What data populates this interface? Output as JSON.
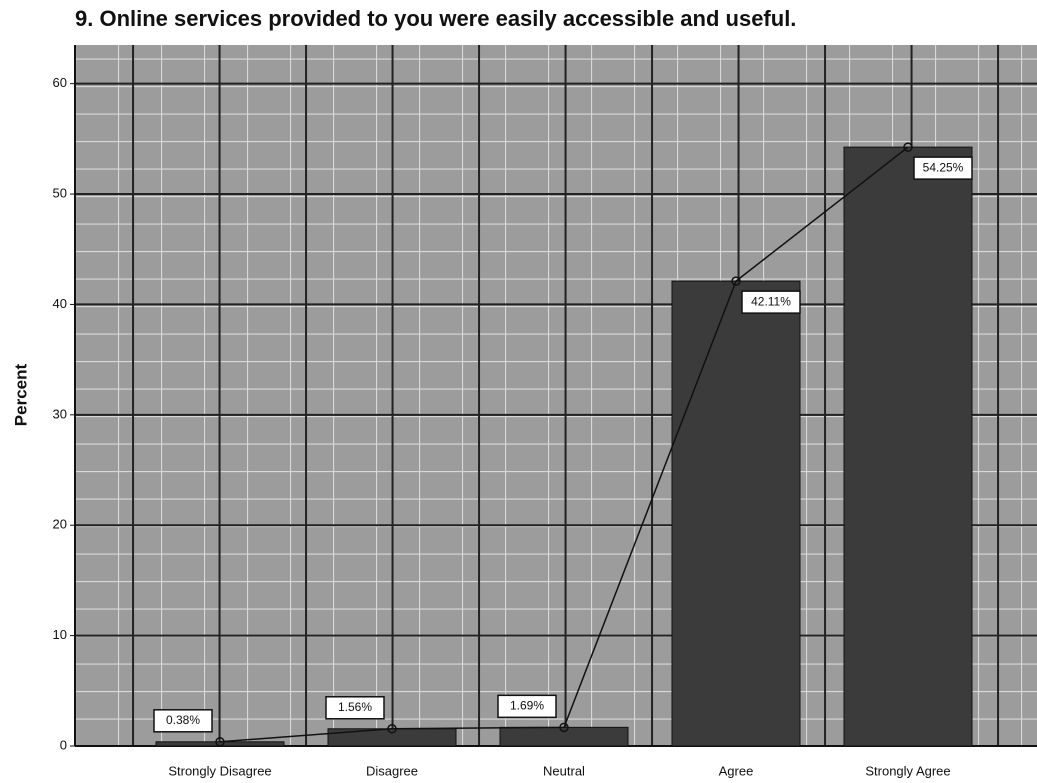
{
  "chart_data": {
    "type": "bar",
    "title": "9. Online services provided to you were easily accessible and useful.",
    "y_label": "Percent",
    "categories": [
      "Strongly Disagree",
      "Disagree",
      "Neutral",
      "Agree",
      "Strongly Agree"
    ],
    "values": [
      0.38,
      1.56,
      1.69,
      42.11,
      54.25
    ],
    "value_labels": [
      "0.38%",
      "1.56%",
      "1.69%",
      "42.11%",
      "54.25%"
    ],
    "color": "#3b3b3b",
    "line_overlay": true,
    "line_color": "#111111",
    "ylim": [
      0,
      63.5
    ],
    "yticks": [
      0,
      10,
      20,
      30,
      40,
      50,
      60
    ],
    "grid": true
  }
}
